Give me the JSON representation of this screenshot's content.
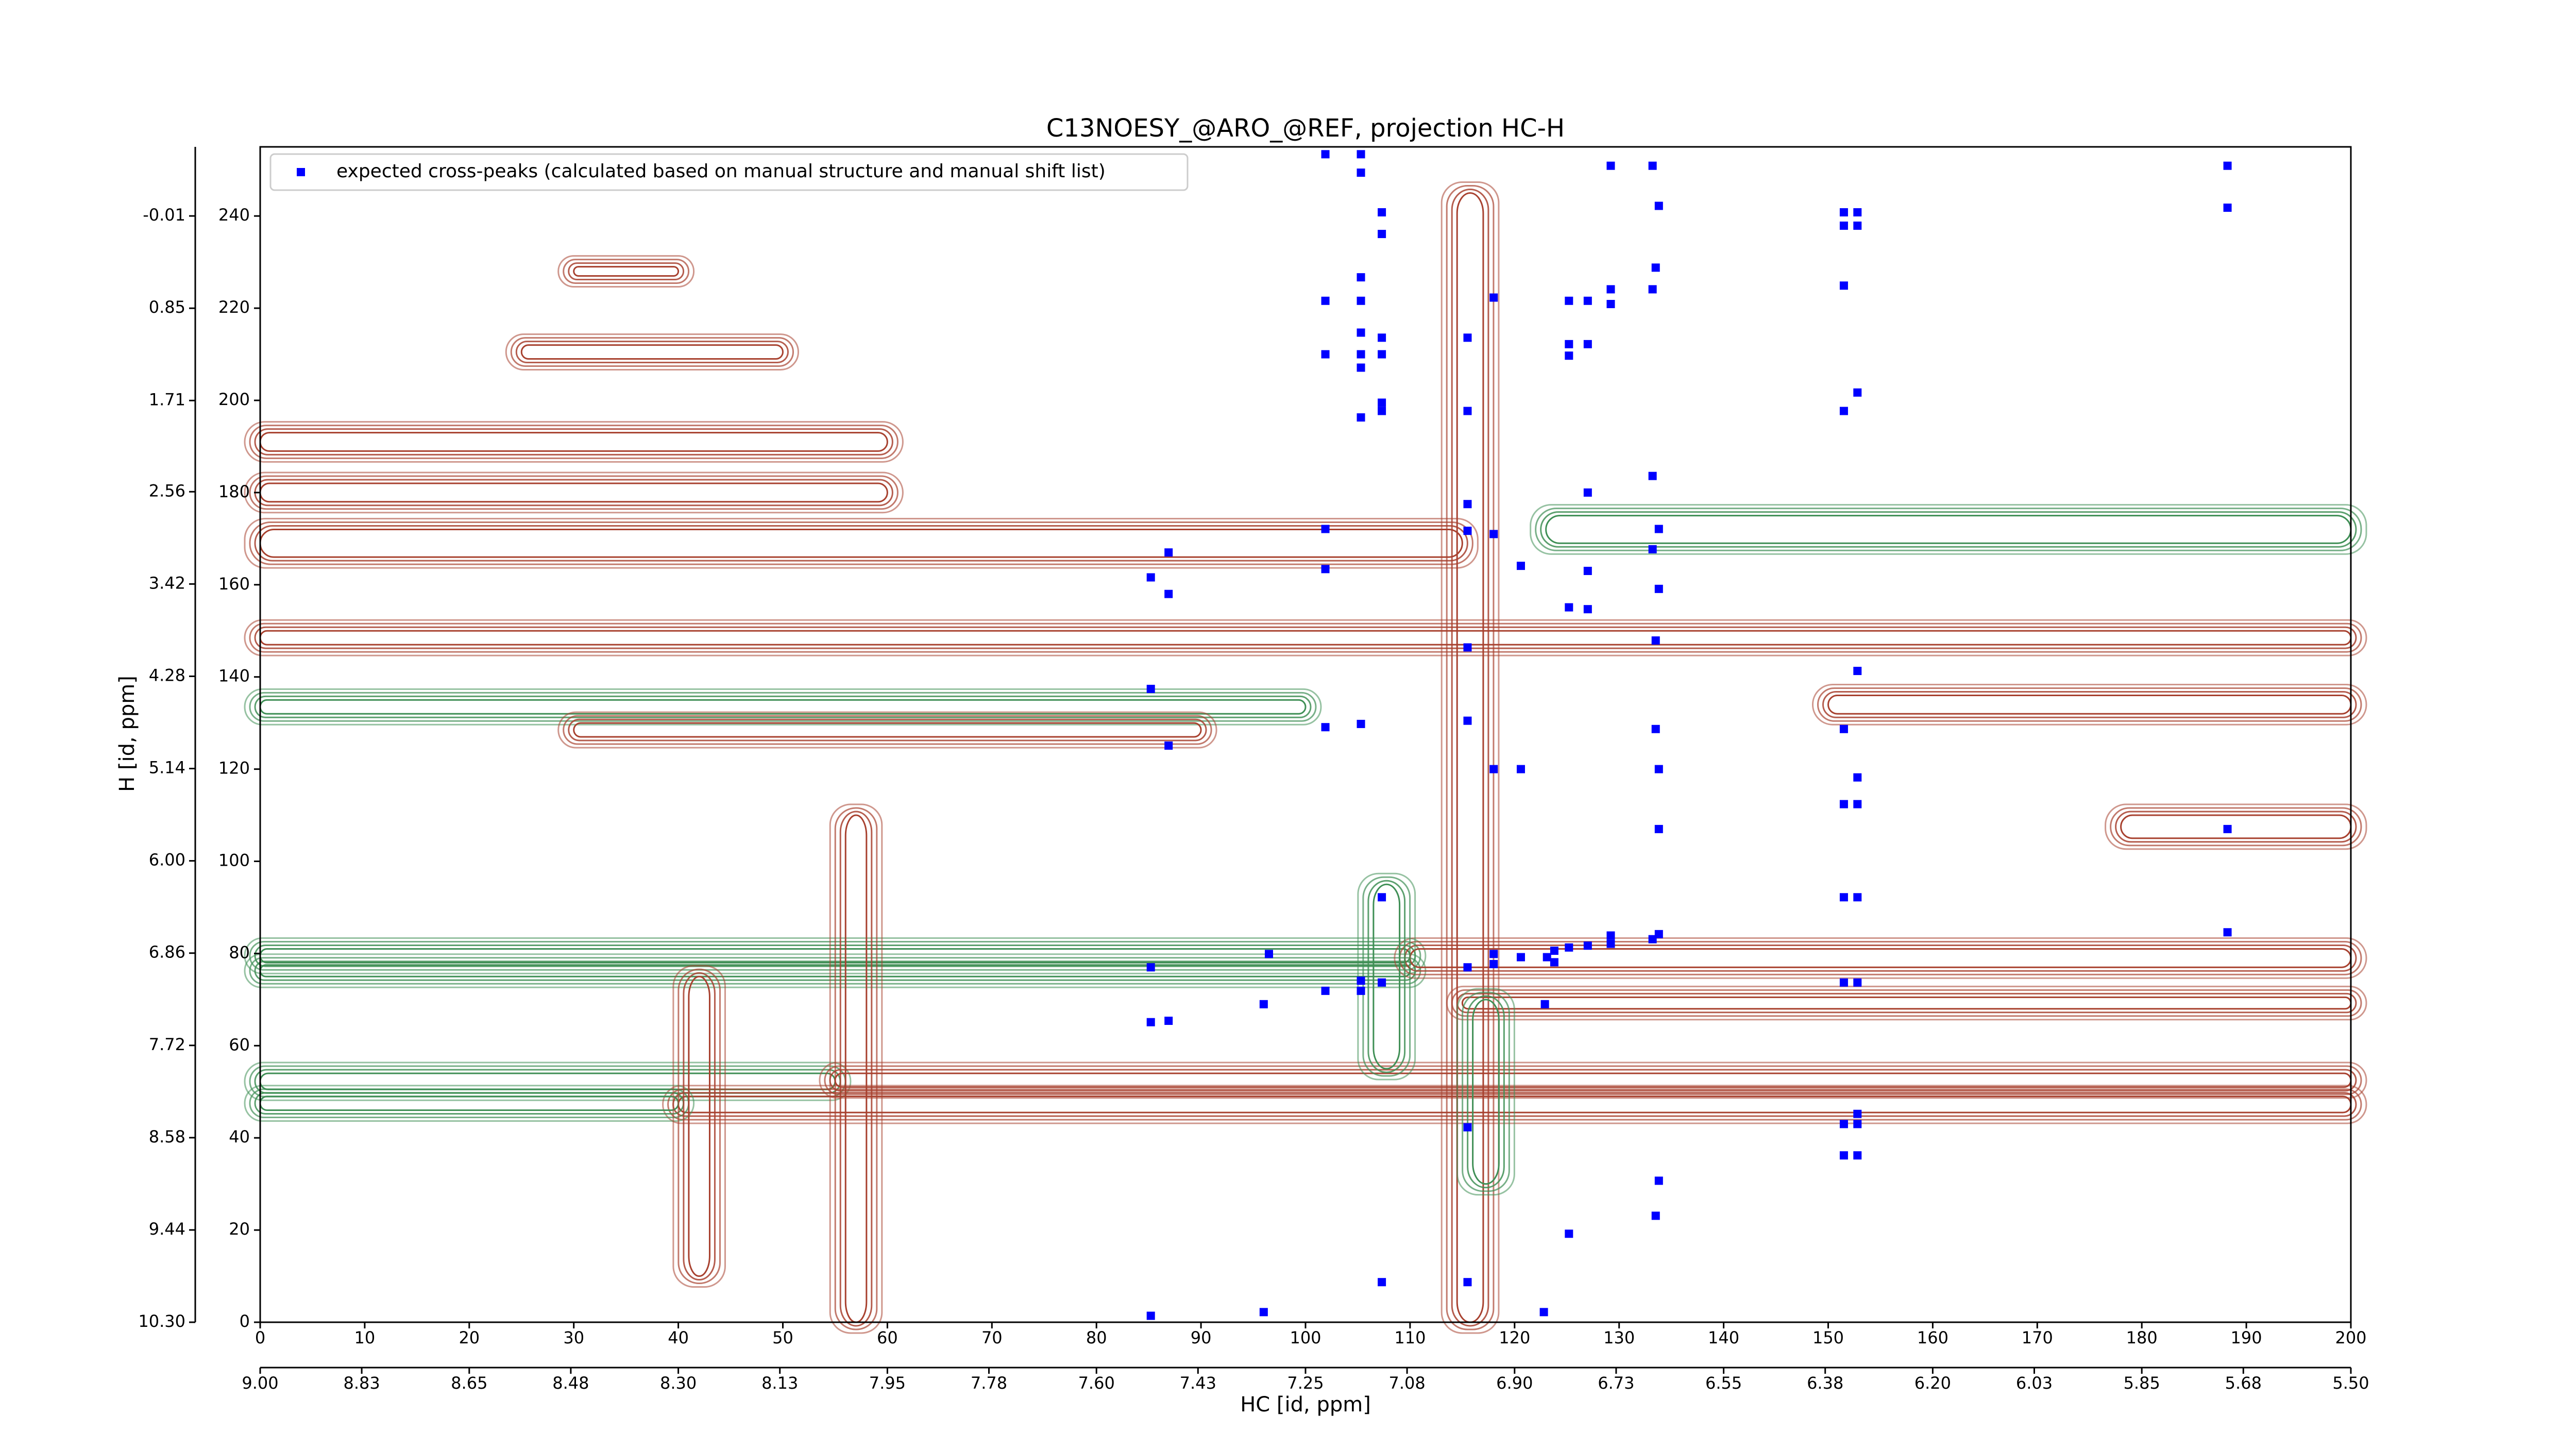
{
  "chart_data": {
    "type": "scatter",
    "title": "C13NOESY_@ARO_@REF, projection HC-H",
    "x_label": "HC [id, ppm]",
    "y_label": "H [id, ppm]",
    "xlim": [
      0,
      200
    ],
    "ylim": [
      0,
      255
    ],
    "xticks": [
      0,
      10,
      20,
      30,
      40,
      50,
      60,
      70,
      80,
      90,
      100,
      110,
      120,
      130,
      140,
      150,
      160,
      170,
      180,
      190,
      200
    ],
    "yticks": [
      0,
      20,
      40,
      60,
      80,
      100,
      120,
      140,
      160,
      180,
      200,
      220,
      240
    ],
    "x2lim": [
      9.0,
      5.5
    ],
    "x2ticks": [
      {
        "value": 9.0,
        "label": "9.00"
      },
      {
        "value": 8.83,
        "label": "8.83"
      },
      {
        "value": 8.65,
        "label": "8.65"
      },
      {
        "value": 8.48,
        "label": "8.48"
      },
      {
        "value": 8.3,
        "label": "8.30"
      },
      {
        "value": 8.13,
        "label": "8.13"
      },
      {
        "value": 7.95,
        "label": "7.95"
      },
      {
        "value": 7.78,
        "label": "7.78"
      },
      {
        "value": 7.6,
        "label": "7.60"
      },
      {
        "value": 7.43,
        "label": "7.43"
      },
      {
        "value": 7.25,
        "label": "7.25"
      },
      {
        "value": 7.08,
        "label": "7.08"
      },
      {
        "value": 6.9,
        "label": "6.90"
      },
      {
        "value": 6.73,
        "label": "6.73"
      },
      {
        "value": 6.55,
        "label": "6.55"
      },
      {
        "value": 6.38,
        "label": "6.38"
      },
      {
        "value": 6.2,
        "label": "6.20"
      },
      {
        "value": 6.03,
        "label": "6.03"
      },
      {
        "value": 5.85,
        "label": "5.85"
      },
      {
        "value": 5.68,
        "label": "5.68"
      },
      {
        "value": 5.5,
        "label": "5.50"
      }
    ],
    "y2lim": [
      10.3,
      -0.654
    ],
    "y2ticks": [
      {
        "value": 10.3,
        "label": "10.30"
      },
      {
        "value": 9.44,
        "label": "9.44"
      },
      {
        "value": 8.58,
        "label": "8.58"
      },
      {
        "value": 7.72,
        "label": "7.72"
      },
      {
        "value": 6.86,
        "label": "6.86"
      },
      {
        "value": 6.0,
        "label": "6.00"
      },
      {
        "value": 5.14,
        "label": "5.14"
      },
      {
        "value": 4.28,
        "label": "4.28"
      },
      {
        "value": 3.42,
        "label": "3.42"
      },
      {
        "value": 2.56,
        "label": "2.56"
      },
      {
        "value": 1.71,
        "label": "1.71"
      },
      {
        "value": 0.85,
        "label": "0.85"
      },
      {
        "value": -0.01,
        "label": "-0.01"
      }
    ],
    "legend": "upper left",
    "contours": [
      {
        "color": "#a8412f",
        "x": [
          0,
          115
        ],
        "y": [
          166,
          172
        ]
      },
      {
        "color": "#3f8f55",
        "x": [
          123,
          200
        ],
        "y": [
          169,
          175
        ]
      },
      {
        "color": "#a8412f",
        "x": [
          0,
          60
        ],
        "y": [
          178,
          182
        ]
      },
      {
        "color": "#a8412f",
        "x": [
          0,
          60
        ],
        "y": [
          189,
          193
        ]
      },
      {
        "color": "#a8412f",
        "x": [
          0,
          200
        ],
        "y": [
          147,
          150
        ]
      },
      {
        "color": "#3f8f55",
        "x": [
          0,
          100
        ],
        "y": [
          132,
          135
        ]
      },
      {
        "color": "#a8412f",
        "x": [
          30,
          90
        ],
        "y": [
          127,
          130
        ]
      },
      {
        "color": "#a8412f",
        "x": [
          150,
          200
        ],
        "y": [
          132,
          136
        ]
      },
      {
        "color": "#a8412f",
        "x": [
          178,
          200
        ],
        "y": [
          105,
          110
        ]
      },
      {
        "color": "#3f8f55",
        "x": [
          0,
          110
        ],
        "y": [
          78,
          81
        ]
      },
      {
        "color": "#3f8f55",
        "x": [
          0,
          110
        ],
        "y": [
          75,
          77.5
        ]
      },
      {
        "color": "#a8412f",
        "x": [
          110,
          200
        ],
        "y": [
          77,
          81
        ]
      },
      {
        "color": "#a8412f",
        "x": [
          115,
          200
        ],
        "y": [
          68,
          70.5
        ]
      },
      {
        "color": "#3f8f55",
        "x": [
          0,
          55
        ],
        "y": [
          50.5,
          54
        ]
      },
      {
        "color": "#a8412f",
        "x": [
          55,
          200
        ],
        "y": [
          51,
          54
        ]
      },
      {
        "color": "#a8412f",
        "x": [
          40,
          200
        ],
        "y": [
          45.5,
          49
        ]
      },
      {
        "color": "#3f8f55",
        "x": [
          0,
          40
        ],
        "y": [
          46,
          49
        ]
      },
      {
        "color": "#a8412f",
        "x": [
          114.5,
          117
        ],
        "y": [
          0,
          245
        ]
      },
      {
        "color": "#3f8f55",
        "x": [
          106.5,
          109
        ],
        "y": [
          55,
          95
        ]
      },
      {
        "color": "#a8412f",
        "x": [
          41,
          43
        ],
        "y": [
          10,
          75
        ]
      },
      {
        "color": "#a8412f",
        "x": [
          56,
          58
        ],
        "y": [
          0,
          110
        ]
      },
      {
        "color": "#3f8f55",
        "x": [
          116,
          118.5
        ],
        "y": [
          30,
          70
        ]
      },
      {
        "color": "#a8412f",
        "x": [
          25,
          50
        ],
        "y": [
          209,
          212
        ]
      },
      {
        "color": "#a8412f",
        "x": [
          30,
          40
        ],
        "y": [
          227,
          229
        ]
      }
    ],
    "series": [
      {
        "name": "expected cross-peaks (calculated based on manual structure and manual shift list)",
        "color": "#0000ff",
        "x": [
          85.2,
          96.0,
          122.8,
          107.3,
          115.5,
          125.2,
          133.5,
          133.8,
          151.5,
          152.8,
          151.5,
          152.8,
          152.8,
          115.5,
          85.2,
          86.9,
          96.0,
          122.9,
          101.9,
          105.3,
          105.3,
          107.3,
          115.5,
          118.0,
          118.0,
          120.6,
          123.1,
          123.8,
          123.8,
          125.2,
          127.0,
          129.2,
          129.2,
          133.2,
          133.8,
          85.2,
          96.5,
          151.5,
          152.8,
          188.2,
          107.3,
          151.5,
          152.8,
          133.8,
          188.2,
          118.0,
          120.6,
          133.8,
          152.8,
          152.8,
          151.5,
          86.9,
          101.9,
          105.3,
          115.5,
          133.5,
          151.5,
          85.2,
          152.8,
          115.5,
          133.5,
          125.2,
          127.0,
          133.8,
          85.2,
          86.9,
          86.9,
          101.9,
          120.6,
          127.0,
          133.2,
          133.8,
          101.9,
          115.5,
          118.0,
          115.5,
          127.0,
          133.2,
          105.3,
          107.3,
          107.3,
          115.5,
          151.5,
          152.8,
          101.9,
          105.3,
          107.3,
          105.3,
          125.2,
          125.2,
          127.0,
          105.3,
          107.3,
          115.5,
          118.0,
          101.9,
          105.3,
          105.3,
          125.2,
          127.0,
          129.2,
          129.2,
          133.2,
          133.5,
          151.5,
          107.3,
          107.3,
          133.8,
          151.5,
          152.8,
          151.5,
          152.8,
          188.2,
          188.2,
          101.9,
          105.3,
          105.3,
          129.2,
          133.2
        ],
        "values": [
          1.4,
          2.2,
          2.2,
          8.7,
          8.7,
          19.2,
          23.1,
          30.7,
          36.2,
          36.2,
          43.0,
          43.0,
          45.2,
          42.3,
          65.1,
          65.4,
          69.0,
          69.0,
          71.9,
          71.9,
          74.1,
          73.7,
          77.0,
          77.7,
          79.9,
          79.2,
          79.2,
          80.6,
          78.1,
          81.3,
          81.7,
          82.1,
          83.9,
          83.1,
          84.2,
          77.0,
          79.9,
          73.7,
          73.7,
          84.6,
          92.2,
          92.2,
          92.2,
          107.0,
          107.0,
          120.0,
          120.0,
          120.0,
          118.2,
          112.4,
          112.4,
          125.1,
          129.1,
          129.8,
          130.5,
          128.7,
          128.7,
          137.4,
          141.3,
          146.4,
          147.9,
          155.1,
          154.7,
          159.1,
          161.6,
          158.0,
          167.0,
          163.4,
          164.1,
          163.0,
          167.7,
          172.1,
          172.1,
          171.7,
          171.0,
          177.5,
          180.0,
          183.6,
          196.3,
          197.7,
          199.5,
          197.7,
          197.7,
          201.7,
          210.0,
          210.0,
          210.0,
          207.1,
          209.7,
          212.2,
          212.2,
          214.7,
          213.6,
          213.6,
          222.3,
          221.6,
          221.6,
          226.7,
          221.6,
          221.6,
          220.9,
          224.1,
          224.1,
          228.8,
          224.9,
          240.8,
          236.1,
          242.2,
          240.8,
          240.8,
          237.9,
          237.9,
          241.8,
          250.9,
          253.4,
          253.4,
          249.4,
          250.9,
          250.9
        ]
      }
    ]
  }
}
